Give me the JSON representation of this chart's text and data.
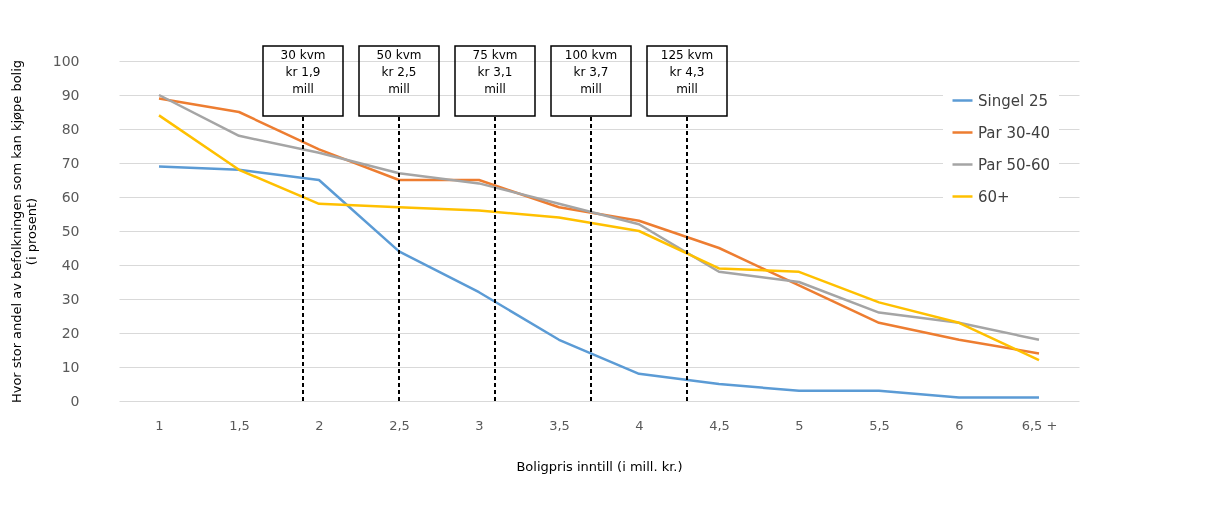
{
  "chart_data": {
    "type": "line",
    "xlabel": "Boligpris inntill (i mill. kr.)",
    "ylabel": "Hvor stor andel av befolkningen som kan kjøpe bolig\n(i prosent)",
    "x": [
      1,
      1.5,
      2,
      2.5,
      3,
      3.5,
      4,
      4.5,
      5,
      5.5,
      6,
      6.5
    ],
    "xlim": [
      0.75,
      6.75
    ],
    "xticks": [
      {
        "value": 1,
        "label": "1"
      },
      {
        "value": 1.5,
        "label": "1,5"
      },
      {
        "value": 2,
        "label": "2"
      },
      {
        "value": 2.5,
        "label": "2,5"
      },
      {
        "value": 3,
        "label": "3"
      },
      {
        "value": 3.5,
        "label": "3,5"
      },
      {
        "value": 4,
        "label": "4"
      },
      {
        "value": 4.5,
        "label": "4,5"
      },
      {
        "value": 5,
        "label": "5"
      },
      {
        "value": 5.5,
        "label": "5,5"
      },
      {
        "value": 6,
        "label": "6"
      },
      {
        "value": 6.5,
        "label": "6,5 +"
      }
    ],
    "ylim": [
      0,
      100
    ],
    "yticks": [
      0,
      10,
      20,
      30,
      40,
      50,
      60,
      70,
      80,
      90,
      100
    ],
    "series": [
      {
        "name": "Singel 25",
        "color": "#5b9bd5",
        "values": [
          69,
          68,
          65,
          44,
          32,
          18,
          8,
          5,
          3,
          3,
          1,
          1
        ]
      },
      {
        "name": "Par 30-40",
        "color": "#ed7d31",
        "values": [
          89,
          85,
          74,
          65,
          65,
          57,
          53,
          45,
          34,
          23,
          18,
          14
        ]
      },
      {
        "name": "Par 50-60",
        "color": "#a5a5a5",
        "values": [
          90,
          78,
          73,
          67,
          64,
          58,
          52,
          38,
          35,
          26,
          23,
          18
        ]
      },
      {
        "name": "60+",
        "color": "#ffc000",
        "values": [
          84,
          68,
          58,
          57,
          56,
          54,
          50,
          39,
          38,
          29,
          23,
          12
        ]
      }
    ],
    "ref_lines": [
      {
        "axis": "x",
        "value": 1.9,
        "label": "30 kvm\nkr 1,9\nmill",
        "color": "#000000",
        "line_style": "dashed"
      },
      {
        "axis": "x",
        "value": 2.5,
        "label": "50 kvm\nkr 2,5\nmill",
        "color": "#000000",
        "line_style": "dashed"
      },
      {
        "axis": "x",
        "value": 3.1,
        "label": "75 kvm\nkr 3,1\nmill",
        "color": "#000000",
        "line_style": "dashed"
      },
      {
        "axis": "x",
        "value": 3.7,
        "label": "100 kvm\nkr 3,7\nmill",
        "color": "#000000",
        "line_style": "dashed"
      },
      {
        "axis": "x",
        "value": 4.3,
        "label": "125 kvm\nkr 4,3\nmill",
        "color": "#000000",
        "line_style": "dashed"
      }
    ],
    "grid": "y",
    "legend": "top right",
    "marker": "none",
    "line_style": "solid"
  }
}
